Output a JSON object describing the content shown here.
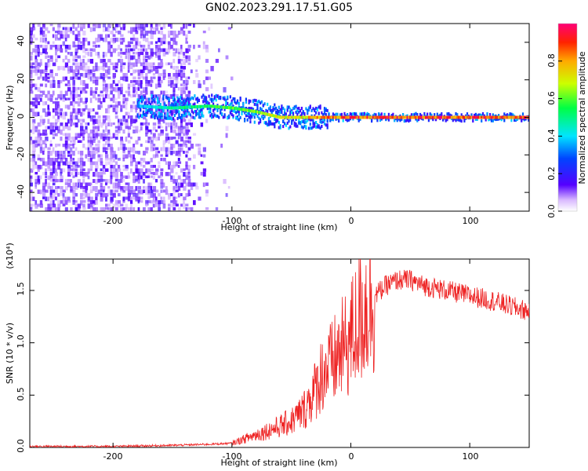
{
  "title": "GN02.2023.291.17.51.G05",
  "colors": {
    "line": "#ee2222",
    "noise": "#7b1be6",
    "axis": "#000000"
  },
  "chart_data": [
    {
      "type": "heatmap",
      "title": "GN02.2023.291.17.51.G05",
      "xlabel": "Height of straight line (km)",
      "ylabel": "Frequency (Hz)",
      "xlim": [
        -270,
        150
      ],
      "ylim": [
        -50,
        50
      ],
      "x_ticks": [
        -200,
        -100,
        0,
        100
      ],
      "y_ticks": [
        -40,
        -20,
        0,
        20,
        40
      ],
      "colorbar": {
        "label": "Normalized spectral amplitude",
        "range": [
          0,
          1
        ],
        "ticks": [
          0.0,
          0.2,
          0.4,
          0.6,
          0.8
        ],
        "colormap": "rainbow"
      },
      "signal_track": [
        {
          "x": -180,
          "freq": 6,
          "amp": 0.35
        },
        {
          "x": -150,
          "freq": 5,
          "amp": 0.5
        },
        {
          "x": -120,
          "freq": 6,
          "amp": 0.55
        },
        {
          "x": -100,
          "freq": 5,
          "amp": 0.6
        },
        {
          "x": -80,
          "freq": 3,
          "amp": 0.65
        },
        {
          "x": -60,
          "freq": 0,
          "amp": 0.7
        },
        {
          "x": -40,
          "freq": 0,
          "amp": 0.75
        },
        {
          "x": -20,
          "freq": 0,
          "amp": 0.85
        },
        {
          "x": 0,
          "freq": 0,
          "amp": 0.9
        },
        {
          "x": 50,
          "freq": 0,
          "amp": 0.9
        },
        {
          "x": 100,
          "freq": 0,
          "amp": 0.9
        },
        {
          "x": 150,
          "freq": 0,
          "amp": 0.9
        }
      ]
    },
    {
      "type": "line",
      "xlabel": "Height of straight line (km)",
      "ylabel": "SNR (10 * v/v)",
      "y_multiplier": "(x10⁴)",
      "xlim": [
        -270,
        150
      ],
      "ylim": [
        0,
        1.8
      ],
      "x_ticks": [
        -200,
        -100,
        0,
        100
      ],
      "y_ticks": [
        0.0,
        0.5,
        1.0,
        1.5
      ],
      "series": [
        {
          "x": [
            -270,
            -200,
            -150,
            -120,
            -100,
            -80,
            -60,
            -50,
            -40,
            -30,
            -25,
            -20,
            -15,
            -10,
            -5,
            0,
            10,
            20,
            30,
            40,
            50,
            60,
            80,
            100,
            120,
            140,
            150
          ],
          "values": [
            0.01,
            0.01,
            0.02,
            0.03,
            0.04,
            0.12,
            0.2,
            0.25,
            0.35,
            0.55,
            0.7,
            0.75,
            0.8,
            0.9,
            0.95,
            1.05,
            1.3,
            1.45,
            1.55,
            1.6,
            1.6,
            1.55,
            1.5,
            1.45,
            1.4,
            1.33,
            1.3
          ]
        }
      ]
    }
  ],
  "colorbar_tick_labels": [
    "0.0",
    "0.2",
    "0.4",
    "0.6",
    "0.8"
  ],
  "top_x_tick_labels": [
    "-200",
    "-100",
    "0",
    "100"
  ],
  "top_y_tick_labels": [
    "-40",
    "-20",
    "0",
    "20",
    "40"
  ],
  "bottom_x_tick_labels": [
    "-200",
    "-100",
    "0",
    "100"
  ],
  "bottom_y_tick_labels": [
    "0.0",
    "0.5",
    "1.0",
    "1.5"
  ]
}
